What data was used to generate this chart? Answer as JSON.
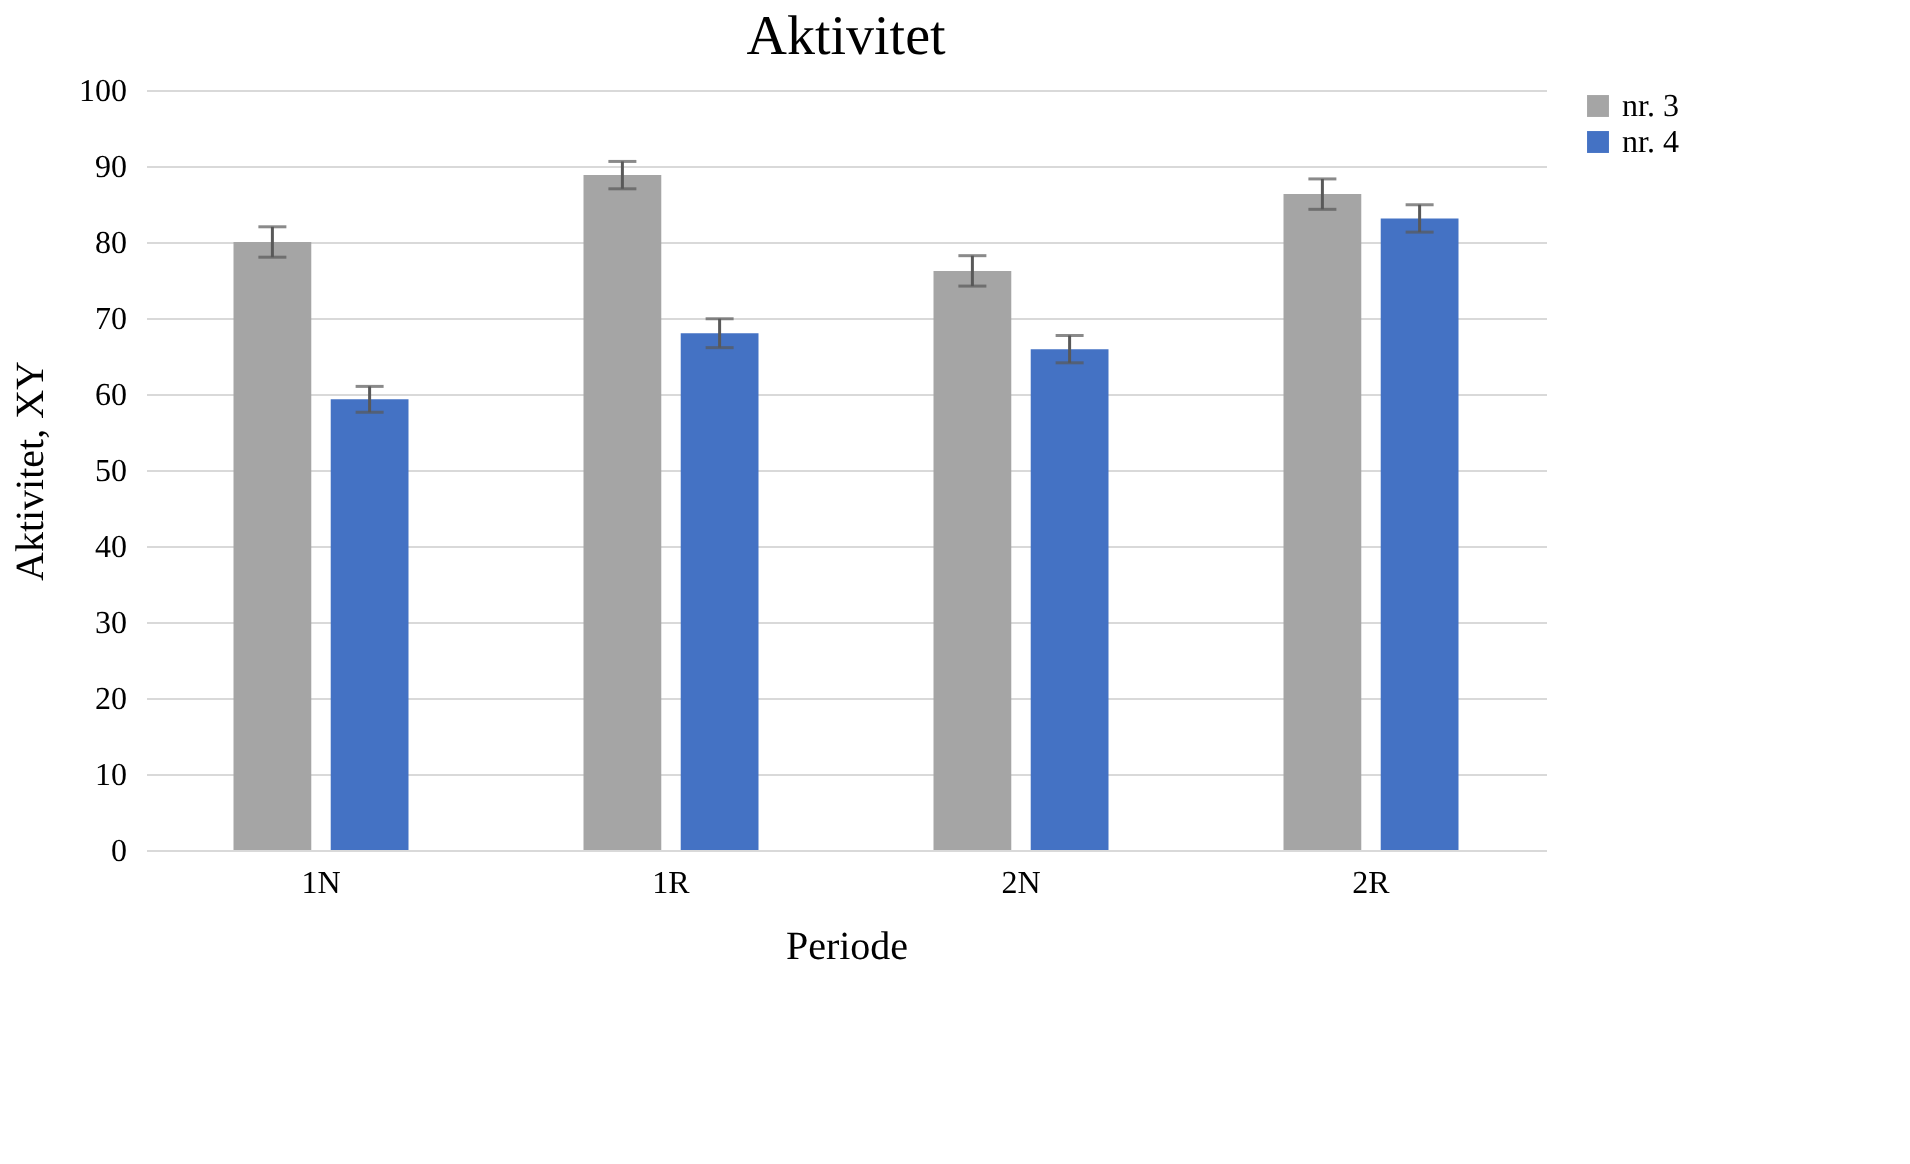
{
  "chart_data": {
    "type": "bar",
    "title": "Aktivitet",
    "xlabel": "Periode",
    "ylabel": "Aktivitet, XY",
    "categories": [
      "1N",
      "1R",
      "2N",
      "2R"
    ],
    "series": [
      {
        "name": "nr. 3",
        "color": "#a5a5a5",
        "values": [
          80,
          88.8,
          76.2,
          86.3
        ],
        "errors": [
          2,
          1.8,
          2,
          2
        ]
      },
      {
        "name": "nr. 4",
        "color": "#4472c4",
        "values": [
          59.3,
          68,
          65.9,
          83.1
        ],
        "errors": [
          1.7,
          1.9,
          1.8,
          1.8
        ]
      }
    ],
    "ylim": [
      0,
      100
    ],
    "yticks": [
      0,
      10,
      20,
      30,
      40,
      50,
      60,
      70,
      80,
      90,
      100
    ],
    "grid": "y",
    "legend": "right"
  }
}
